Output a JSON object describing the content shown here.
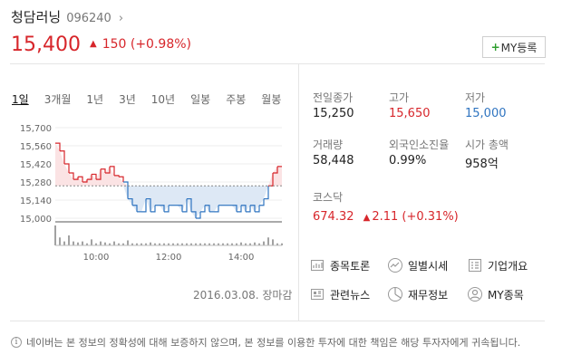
{
  "stock": {
    "name": "청담러닝",
    "code": "096240",
    "price": "15,400",
    "change_arrow": "▲",
    "change": "150 (+0.98%)",
    "my_button": "MY등록",
    "my_plus": "+"
  },
  "tabs": [
    "1일",
    "3개월",
    "1년",
    "3년",
    "10년",
    "일봉",
    "주봉",
    "월봉"
  ],
  "stats": {
    "prev_close": {
      "label": "전일종가",
      "value": "15,250"
    },
    "high": {
      "label": "고가",
      "value": "15,650"
    },
    "low": {
      "label": "저가",
      "value": "15,000"
    },
    "volume": {
      "label": "거래량",
      "value": "58,448"
    },
    "foreign": {
      "label": "외국인소진율",
      "value": "0.99%"
    },
    "market_cap": {
      "label": "시가 총액",
      "value": "958억"
    }
  },
  "kosdaq": {
    "label": "코스닥",
    "value": "674.32",
    "arrow": "▲",
    "change": "2.11 (+0.31%)"
  },
  "links": [
    {
      "label": "종목토론",
      "icon": "chart-board-icon"
    },
    {
      "label": "일별시세",
      "icon": "trend-icon"
    },
    {
      "label": "기업개요",
      "icon": "list-icon"
    },
    {
      "label": "관련뉴스",
      "icon": "news-icon"
    },
    {
      "label": "재무정보",
      "icon": "pie-icon"
    },
    {
      "label": "MY종목",
      "icon": "user-icon"
    }
  ],
  "chart_data": {
    "type": "line",
    "yticks": [
      "15,700",
      "15,560",
      "15,420",
      "15,280",
      "15,140",
      "15,000"
    ],
    "ylim": [
      15000,
      15700
    ],
    "baseline": 15250,
    "xticks": [
      "10:00",
      "12:00",
      "14:00"
    ],
    "date_label": "2016.03.08. 장마감",
    "x": [
      0,
      2,
      4,
      6,
      8,
      10,
      12,
      14,
      16,
      18,
      20,
      22,
      24,
      26,
      28,
      30,
      32,
      34,
      36,
      38,
      40,
      42,
      44,
      46,
      48,
      50,
      52,
      54,
      56,
      58,
      60,
      62,
      64,
      66,
      68,
      70,
      72,
      74,
      76,
      78,
      80,
      82,
      84,
      86,
      88,
      90,
      92,
      94,
      96,
      98,
      100
    ],
    "values": [
      15580,
      15520,
      15420,
      15350,
      15300,
      15320,
      15280,
      15300,
      15340,
      15300,
      15380,
      15350,
      15400,
      15330,
      15320,
      15280,
      15150,
      15100,
      15050,
      15050,
      15150,
      15050,
      15100,
      15100,
      15050,
      15100,
      15100,
      15100,
      15050,
      15150,
      15050,
      15000,
      15050,
      15100,
      15050,
      15050,
      15100,
      15100,
      15100,
      15100,
      15050,
      15100,
      15050,
      15100,
      15050,
      15100,
      15150,
      15250,
      15350,
      15400,
      15400
    ],
    "volume": [
      1.0,
      0.4,
      0.2,
      0.5,
      0.2,
      0.15,
      0.2,
      0.1,
      0.3,
      0.1,
      0.2,
      0.15,
      0.1,
      0.2,
      0.1,
      0.1,
      0.25,
      0.1,
      0.1,
      0.1,
      0.1,
      0.15,
      0.1,
      0.1,
      0.1,
      0.1,
      0.1,
      0.1,
      0.1,
      0.1,
      0.1,
      0.1,
      0.1,
      0.1,
      0.1,
      0.1,
      0.1,
      0.1,
      0.1,
      0.1,
      0.1,
      0.15,
      0.1,
      0.1,
      0.15,
      0.1,
      0.2,
      0.4,
      0.3,
      0.1,
      0.1
    ],
    "colors": {
      "up": "#d7262b",
      "down": "#2f74c0",
      "up_fill": "#fbe3e4",
      "down_fill": "#dde8f5"
    }
  },
  "disclaimer": "네이버는 본 정보의 정확성에 대해 보증하지 않으며, 본 정보를 이용한 투자에 대한 책임은 해당 투자자에게 귀속됩니다."
}
